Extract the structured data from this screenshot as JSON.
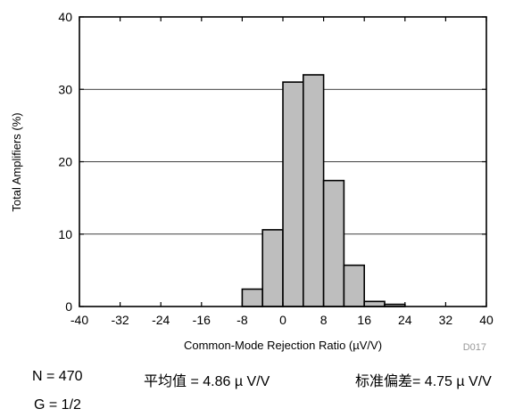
{
  "chart_data": {
    "type": "bar",
    "xlabel": "Common-Mode Rejection Ratio (µV/V)",
    "ylabel": "Total Amplifiers (%)",
    "xlim": [
      -40,
      40
    ],
    "ylim": [
      0,
      40
    ],
    "x_ticks": [
      "-40",
      "-32",
      "-24",
      "-16",
      "-8",
      "0",
      "8",
      "16",
      "24",
      "32",
      "40"
    ],
    "y_ticks": [
      "0",
      "10",
      "20",
      "30",
      "40"
    ],
    "bin_width": 4,
    "bin_starts": [
      -8,
      -4,
      0,
      4,
      8,
      12,
      16,
      20
    ],
    "values": [
      2.4,
      10.6,
      31.0,
      32.0,
      17.4,
      5.7,
      0.7,
      0.3
    ],
    "grid": "horizontal",
    "bar_color": "#bebebe",
    "watermark": "D017"
  },
  "stats": {
    "n": "N = 470",
    "mean": "平均值 = 4.86 µ V/V",
    "stdev": "标准偏差= 4.75 µ V/V",
    "gain": "G = 1/2"
  }
}
